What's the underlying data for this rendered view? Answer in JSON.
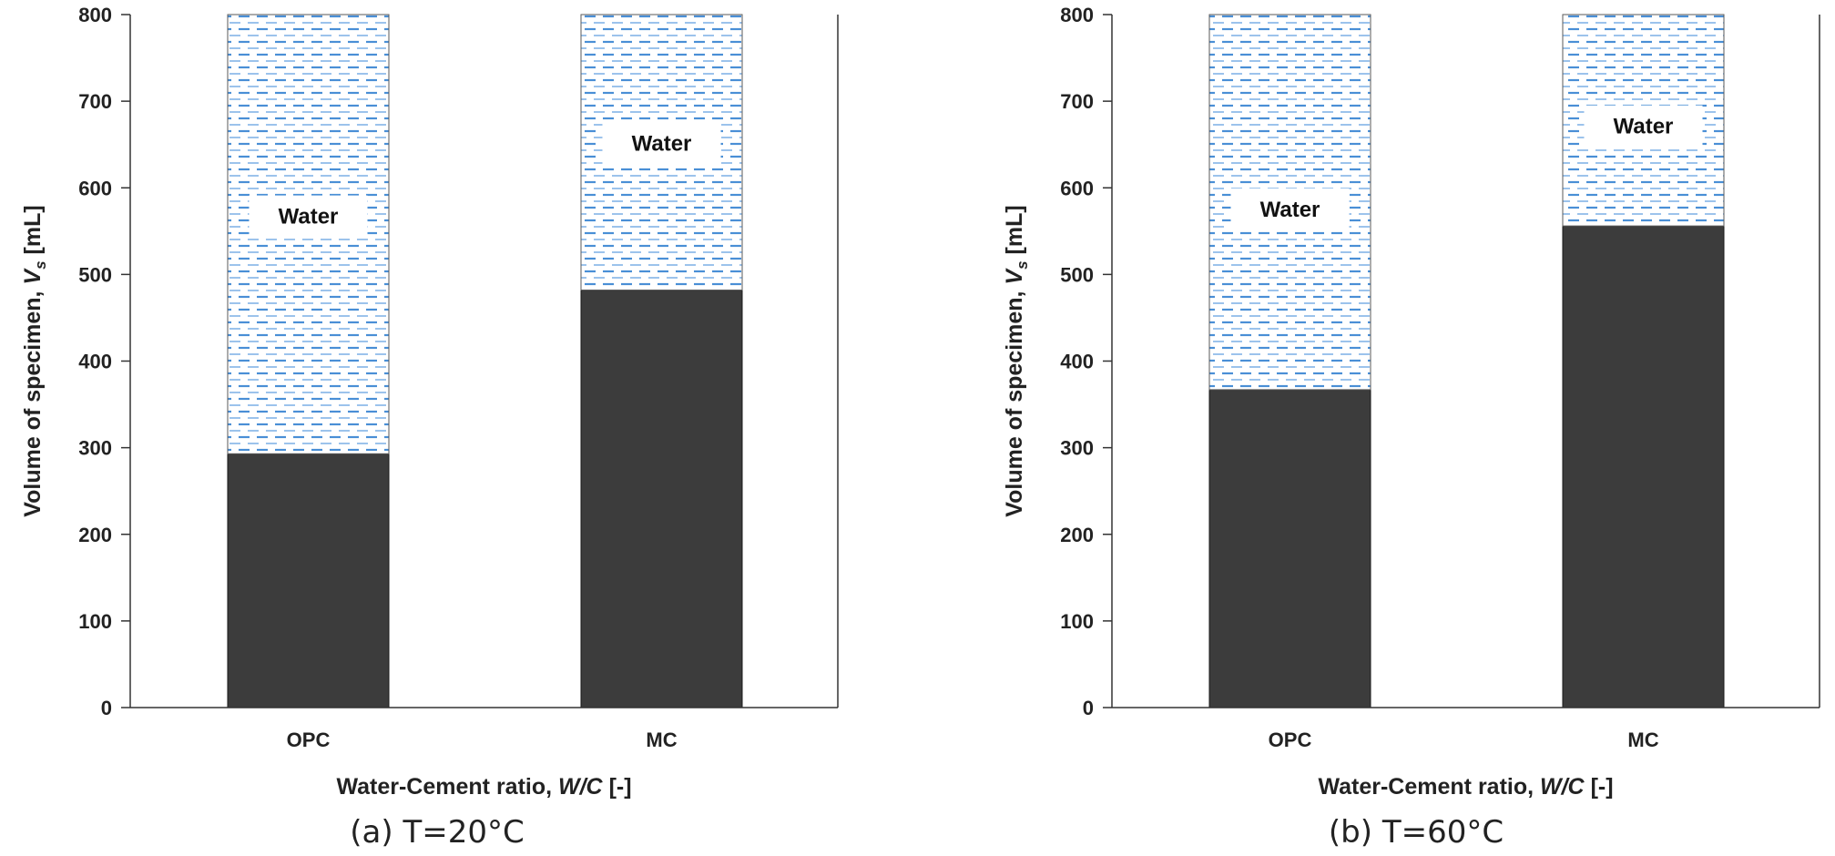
{
  "chart_data": [
    {
      "type": "bar",
      "stacked": true,
      "caption": "(a) T=20°C",
      "xlabel_parts": [
        "Water-Cement ratio, ",
        "W/C",
        " [-]"
      ],
      "ylabel_parts": [
        "Volume of specimen, ",
        "V",
        "s",
        " [mL]"
      ],
      "ylim": [
        0,
        800
      ],
      "yticks": [
        "0",
        "100",
        "200",
        "300",
        "400",
        "500",
        "600",
        "700",
        "800"
      ],
      "categories": [
        "OPC",
        "MC"
      ],
      "series": [
        {
          "values": [
            293,
            482
          ],
          "color": "#3c3c3c"
        },
        {
          "name": "Water",
          "values": [
            507,
            318
          ],
          "pattern": "dashes",
          "color": "#4a8fd6"
        }
      ],
      "water_label_values": [
        567,
        651
      ],
      "grid": false
    },
    {
      "type": "bar",
      "stacked": true,
      "caption": "(b) T=60°C",
      "xlabel_parts": [
        "Water-Cement ratio, ",
        "W/C",
        " [-]"
      ],
      "ylabel_parts": [
        "Volume of specimen, ",
        "V",
        "s",
        " [mL]"
      ],
      "ylim": [
        0,
        800
      ],
      "yticks": [
        "0",
        "100",
        "200",
        "300",
        "400",
        "500",
        "600",
        "700",
        "800"
      ],
      "categories": [
        "OPC",
        "MC"
      ],
      "series": [
        {
          "values": [
            367,
            556
          ],
          "color": "#3c3c3c"
        },
        {
          "name": "Water",
          "values": [
            433,
            244
          ],
          "pattern": "dashes",
          "color": "#4a8fd6"
        }
      ],
      "water_label_values": [
        575,
        671
      ],
      "grid": false
    }
  ]
}
